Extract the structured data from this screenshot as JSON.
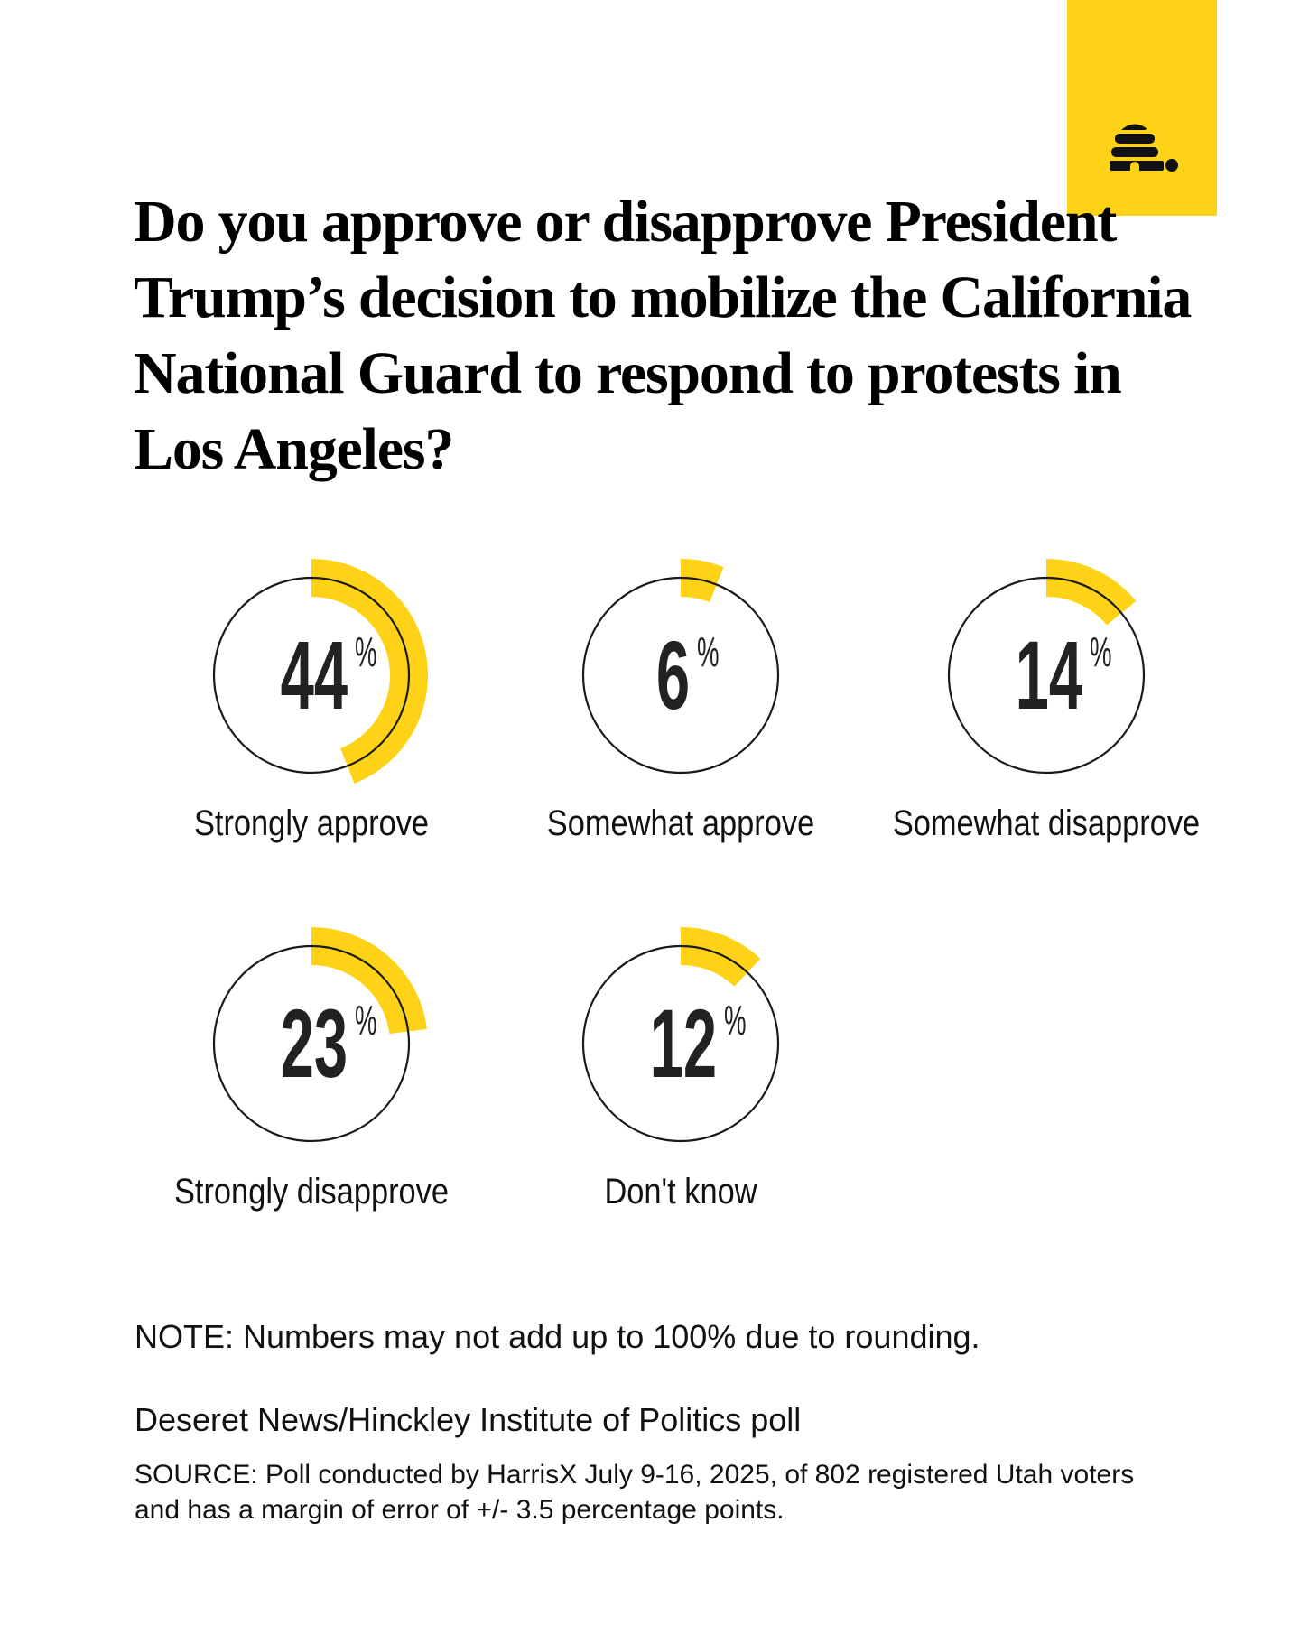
{
  "logo": {
    "name": "deseret-news-beehive-logo",
    "color": "#fed317"
  },
  "title": "Do you approve or disapprove President Trump’s decision to mobilize the California National Guard to respond to protests in Los Angeles?",
  "chart_data": {
    "type": "donut-grid",
    "title": "Do you approve or disapprove President Trump’s decision to mobilize the California National Guard to respond to protests in Los Angeles?",
    "unit": "%",
    "accent_color": "#fed317",
    "items": [
      {
        "label": "Strongly approve",
        "value": 44
      },
      {
        "label": "Somewhat approve",
        "value": 6
      },
      {
        "label": "Somewhat disapprove",
        "value": 14
      },
      {
        "label": "Strongly disapprove",
        "value": 23
      },
      {
        "label": "Don't know",
        "value": 12
      }
    ]
  },
  "footer": {
    "note": "NOTE: Numbers may not add up to 100% due to rounding.",
    "poll": "Deseret News/Hinckley Institute of Politics poll",
    "source": "SOURCE: Poll conducted by HarrisX July 9-16, 2025, of 802 registered Utah voters and has a margin of error of +/- 3.5 percentage points."
  }
}
